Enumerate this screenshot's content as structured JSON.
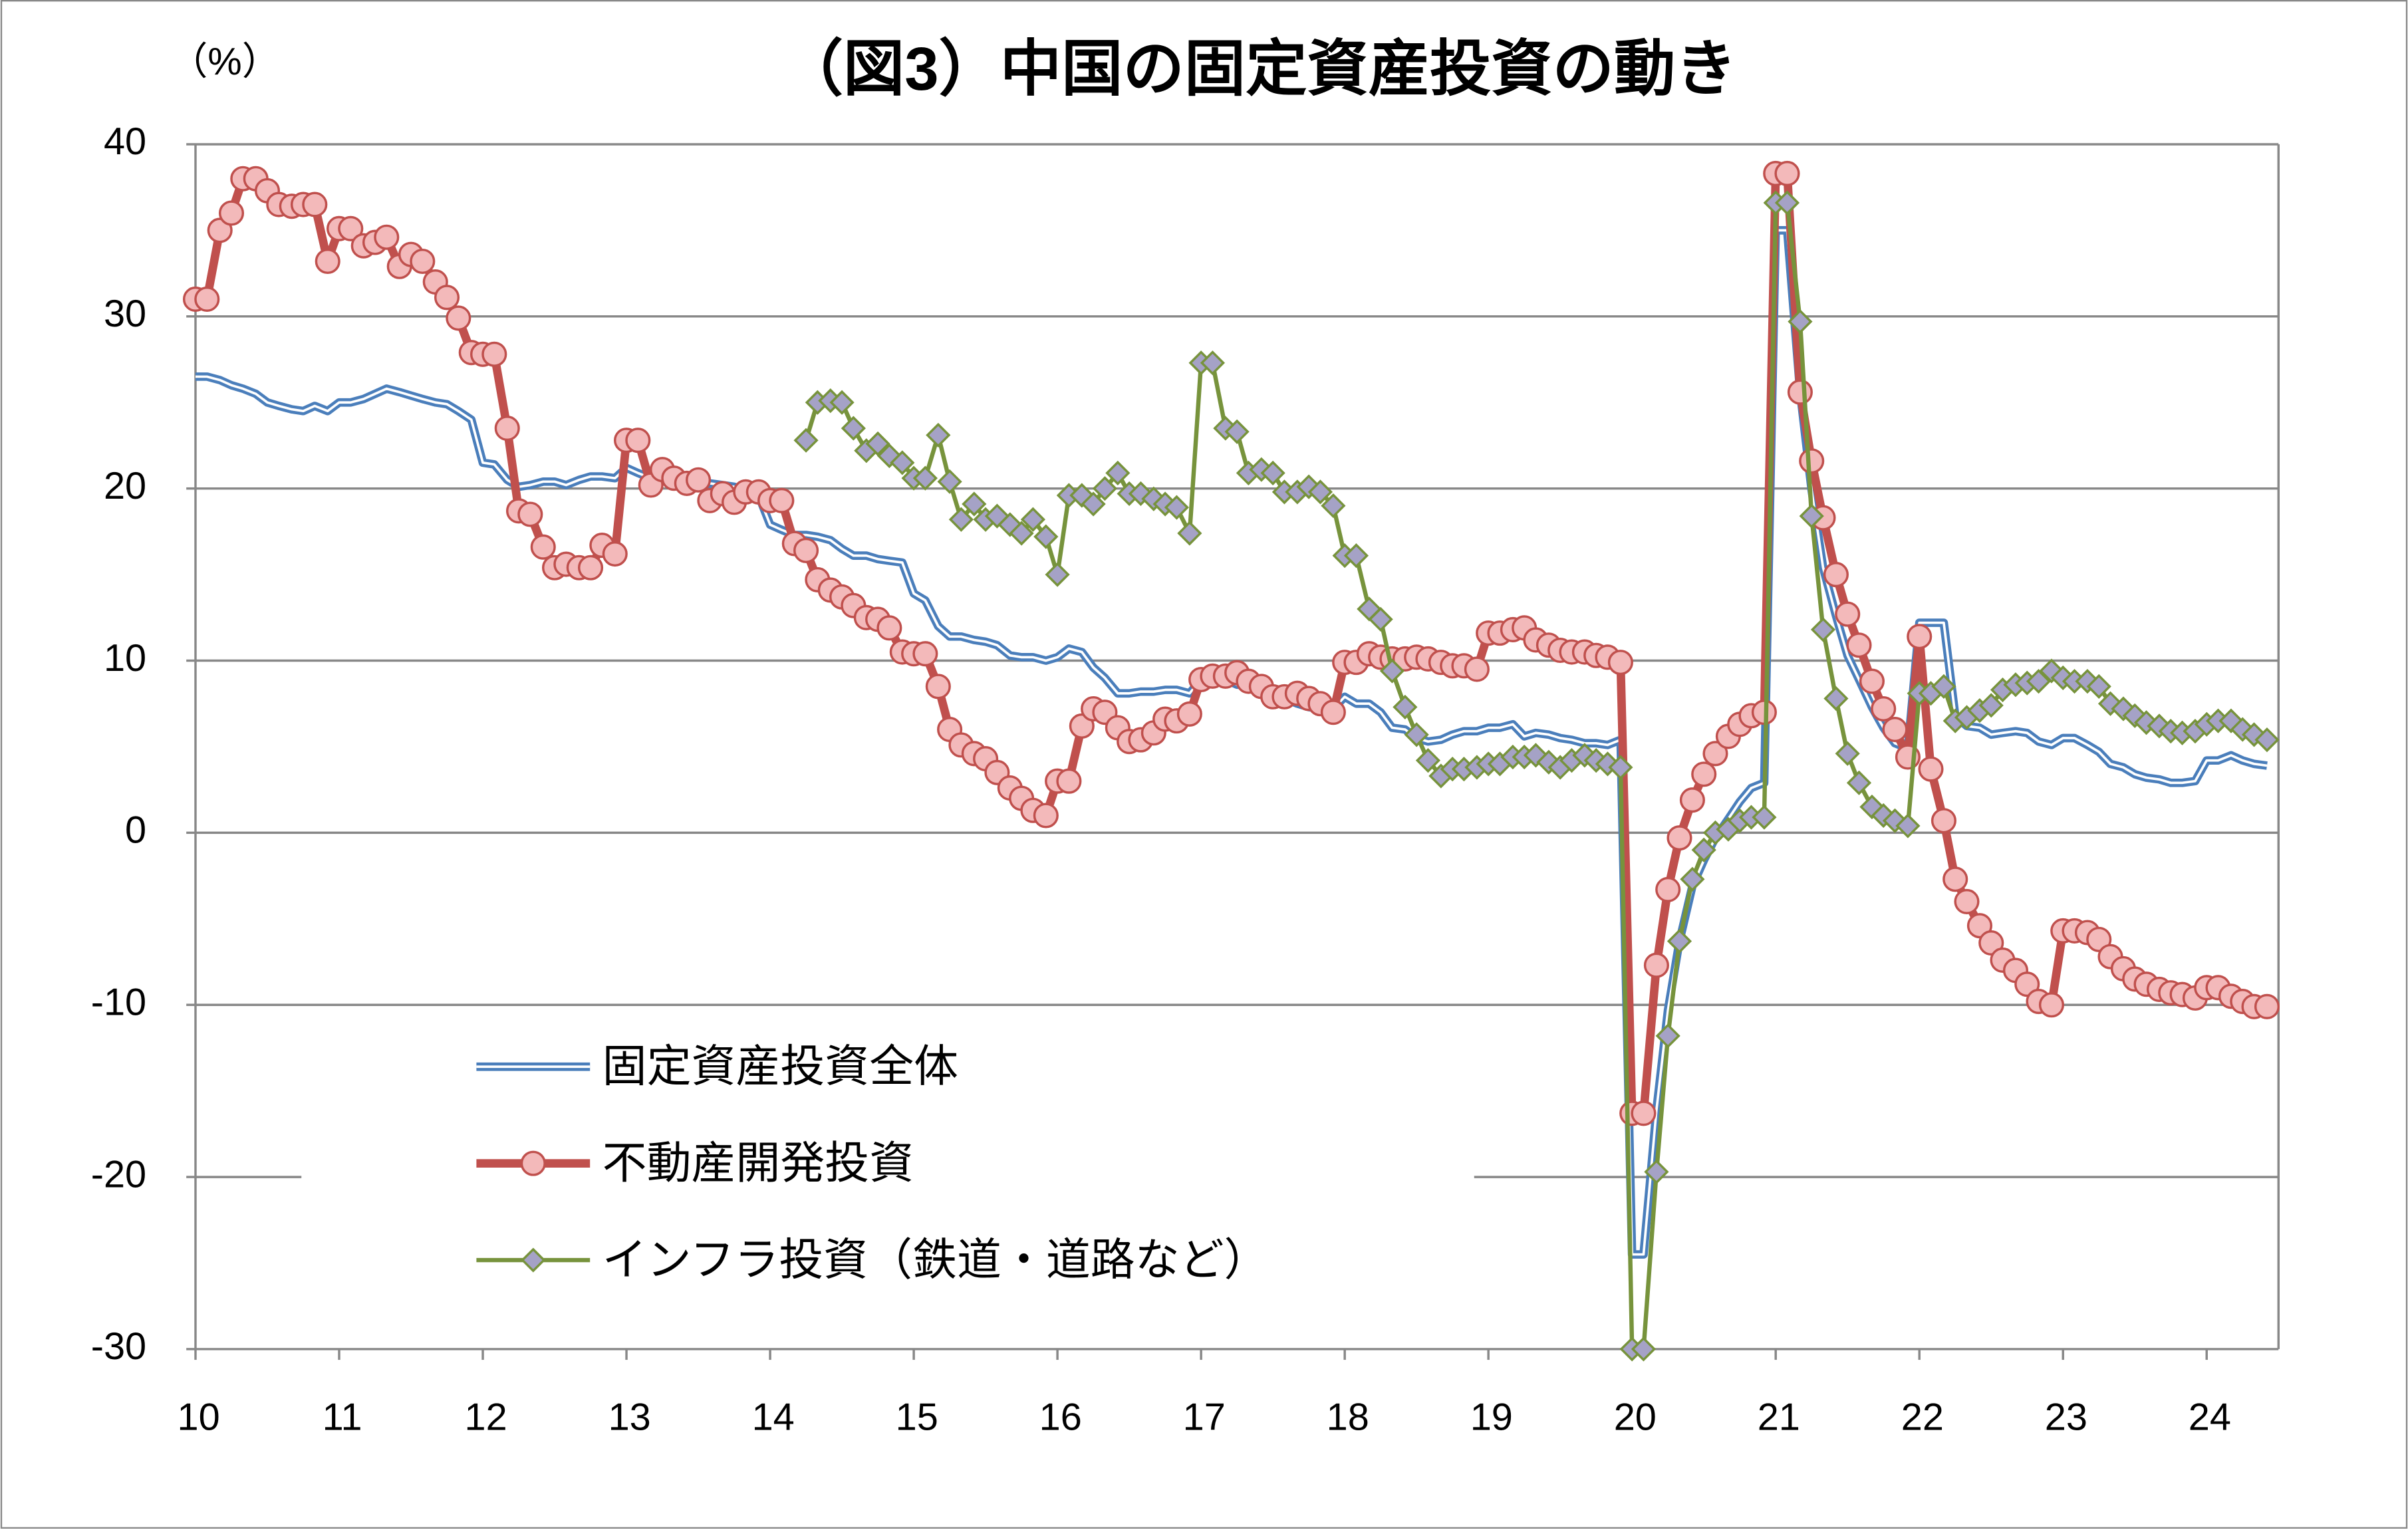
{
  "chart_data": {
    "type": "line",
    "title": "（図3）中国の固定資産投資の動き",
    "y_label": "（%）",
    "x": [
      10,
      10.08,
      10.17,
      10.25,
      10.33,
      10.42,
      10.5,
      10.58,
      10.67,
      10.75,
      10.83,
      10.92,
      11,
      11.08,
      11.17,
      11.25,
      11.33,
      11.42,
      11.5,
      11.58,
      11.67,
      11.75,
      11.83,
      11.92,
      12,
      12.08,
      12.17,
      12.25,
      12.33,
      12.42,
      12.5,
      12.58,
      12.67,
      12.75,
      12.83,
      12.92,
      13,
      13.08,
      13.17,
      13.25,
      13.33,
      13.42,
      13.5,
      13.58,
      13.67,
      13.75,
      13.83,
      13.92,
      14,
      14.08,
      14.17,
      14.25,
      14.33,
      14.42,
      14.5,
      14.58,
      14.67,
      14.75,
      14.83,
      14.92,
      15,
      15.08,
      15.17,
      15.25,
      15.33,
      15.42,
      15.5,
      15.58,
      15.67,
      15.75,
      15.83,
      15.92,
      16,
      16.08,
      16.17,
      16.25,
      16.33,
      16.42,
      16.5,
      16.58,
      16.67,
      16.75,
      16.83,
      16.92,
      17,
      17.08,
      17.17,
      17.25,
      17.33,
      17.42,
      17.5,
      17.58,
      17.67,
      17.75,
      17.83,
      17.92,
      18,
      18.08,
      18.17,
      18.25,
      18.33,
      18.42,
      18.5,
      18.58,
      18.67,
      18.75,
      18.83,
      18.92,
      19,
      19.08,
      19.17,
      19.25,
      19.33,
      19.42,
      19.5,
      19.58,
      19.67,
      19.75,
      19.83,
      19.92,
      20,
      20.08,
      20.17,
      20.25,
      20.33,
      20.42,
      20.5,
      20.58,
      20.67,
      20.75,
      20.83,
      20.92,
      21,
      21.08,
      21.17,
      21.25,
      21.33,
      21.42,
      21.5,
      21.58,
      21.67,
      21.75,
      21.83,
      21.92,
      22,
      22.08,
      22.17,
      22.25,
      22.33,
      22.42,
      22.5,
      22.58,
      22.67,
      22.75,
      22.83,
      22.92,
      23,
      23.08,
      23.17,
      23.25,
      23.33,
      23.42,
      23.5,
      23.58,
      23.67,
      23.75,
      23.83,
      23.92,
      24,
      24.08,
      24.17,
      24.25,
      24.33,
      24.42
    ],
    "series": [
      {
        "name": "固定資産投資全体",
        "color": "#4a7ebb",
        "marker": "none",
        "values": [
          26.5,
          26.5,
          26.3,
          26,
          25.8,
          25.5,
          25,
          24.8,
          24.6,
          24.5,
          24.8,
          24.5,
          25,
          25,
          25.2,
          25.5,
          25.8,
          25.6,
          25.4,
          25.2,
          25,
          24.9,
          24.5,
          24,
          21.5,
          21.4,
          20.5,
          20.1,
          20.2,
          20.4,
          20.4,
          20.2,
          20.5,
          20.7,
          20.7,
          20.6,
          21.2,
          20.9,
          20.6,
          20.6,
          20.4,
          20.1,
          20.1,
          20.3,
          20.2,
          20.1,
          19.9,
          19.6,
          17.9,
          17.6,
          17.3,
          17.3,
          17.2,
          17,
          16.5,
          16.1,
          16.1,
          15.9,
          15.8,
          15.7,
          13.9,
          13.5,
          12,
          11.4,
          11.4,
          11.2,
          11.1,
          10.9,
          10.3,
          10.2,
          10.2,
          10,
          10.2,
          10.7,
          10.5,
          9.6,
          9,
          8.1,
          8.1,
          8.2,
          8.2,
          8.3,
          8.3,
          8.1,
          8.9,
          9.2,
          8.9,
          8.6,
          8.6,
          8.3,
          8.3,
          7.8,
          7.5,
          7.3,
          7.2,
          7.2,
          7.9,
          7.5,
          7.5,
          7,
          6.1,
          6,
          5.5,
          5.3,
          5.4,
          5.7,
          5.9,
          5.9,
          6.1,
          6.1,
          6.3,
          5.6,
          5.8,
          5.7,
          5.5,
          5.4,
          5.2,
          5.2,
          5.1,
          5.4,
          -24.5,
          -24.5,
          -16.1,
          -10.3,
          -6.3,
          -3.1,
          -1.6,
          -0.3,
          0.8,
          1.8,
          2.6,
          2.9,
          35,
          35,
          25.6,
          19.9,
          15.4,
          12.6,
          10.3,
          8.9,
          7.3,
          6.1,
          5.2,
          4.9,
          12.2,
          12.2,
          12.2,
          6.8,
          6.2,
          6.1,
          5.7,
          5.8,
          5.9,
          5.8,
          5.3,
          5.1,
          5.5,
          5.5,
          5.1,
          4.7,
          4,
          3.8,
          3.4,
          3.2,
          3.1,
          2.9,
          2.9,
          3,
          4.2,
          4.2,
          4.5,
          4.2,
          4,
          3.9
        ]
      },
      {
        "name": "不動産開発投資",
        "color": "#c0504d",
        "marker": "circle",
        "values": [
          31,
          31,
          35,
          36,
          38,
          38,
          37.3,
          36.5,
          36.4,
          36.5,
          36.5,
          33.2,
          35.1,
          35.1,
          34.1,
          34.3,
          34.6,
          32.9,
          33.6,
          33.2,
          32,
          31.1,
          29.9,
          27.9,
          27.8,
          27.8,
          23.5,
          18.7,
          18.5,
          16.6,
          15.4,
          15.6,
          15.4,
          15.4,
          16.7,
          16.2,
          22.8,
          22.8,
          20.2,
          21.1,
          20.6,
          20.3,
          20.5,
          19.3,
          19.7,
          19.2,
          19.8,
          19.8,
          19.3,
          19.3,
          16.8,
          16.4,
          14.7,
          14.1,
          13.7,
          13.2,
          12.5,
          12.4,
          11.9,
          10.5,
          10.4,
          10.4,
          8.5,
          6,
          5.1,
          4.6,
          4.3,
          3.5,
          2.6,
          2,
          1.3,
          1,
          3,
          3,
          6.2,
          7.2,
          7,
          6.1,
          5.3,
          5.4,
          5.8,
          6.6,
          6.5,
          6.9,
          8.9,
          9.1,
          9.1,
          9.3,
          8.8,
          8.5,
          7.9,
          7.9,
          8.1,
          7.8,
          7.5,
          7,
          9.9,
          9.9,
          10.4,
          10.2,
          10.1,
          10.1,
          10.2,
          10.1,
          9.9,
          9.7,
          9.7,
          9.5,
          11.6,
          11.6,
          11.8,
          11.9,
          11.2,
          10.9,
          10.6,
          10.5,
          10.5,
          10.3,
          10.2,
          9.9,
          -16.3,
          -16.3,
          -7.7,
          -3.3,
          -0.3,
          1.9,
          3.4,
          4.6,
          5.6,
          6.3,
          6.8,
          7,
          38.3,
          38.3,
          25.6,
          21.6,
          18.3,
          15,
          12.7,
          10.9,
          8.8,
          7.2,
          6,
          4.4,
          11.4,
          3.7,
          0.7,
          -2.7,
          -4,
          -5.4,
          -6.4,
          -7.4,
          -8,
          -8.8,
          -9.8,
          -10,
          -5.7,
          -5.7,
          -5.8,
          -6.2,
          -7.2,
          -7.9,
          -8.5,
          -8.8,
          -9.1,
          -9.3,
          -9.4,
          -9.6,
          -9,
          -9,
          -9.5,
          -9.8,
          -10.1,
          -10.1
        ]
      },
      {
        "name": "インフラ投資（鉄道・道路など）",
        "color": "#77933c",
        "marker": "diamond",
        "values": [
          null,
          null,
          null,
          null,
          null,
          null,
          null,
          null,
          null,
          null,
          null,
          null,
          null,
          null,
          null,
          null,
          null,
          null,
          null,
          null,
          null,
          null,
          null,
          null,
          null,
          null,
          null,
          null,
          null,
          null,
          null,
          null,
          null,
          null,
          null,
          null,
          null,
          null,
          null,
          null,
          null,
          null,
          null,
          null,
          null,
          null,
          null,
          null,
          null,
          null,
          null,
          22.8,
          25,
          25.1,
          25,
          23.5,
          22.2,
          22.6,
          21.9,
          21.5,
          20.6,
          20.6,
          23.1,
          20.4,
          18.2,
          19.1,
          18.2,
          18.4,
          17.9,
          17.4,
          18.2,
          17.2,
          15,
          19.6,
          19.6,
          19.1,
          20,
          20.9,
          19.7,
          19.7,
          19.4,
          19.1,
          18.9,
          17.4,
          27.3,
          27.3,
          23.5,
          23.3,
          20.9,
          21.1,
          20.9,
          19.8,
          19.8,
          20.1,
          19.8,
          19,
          16.1,
          16.1,
          13,
          12.4,
          9.4,
          7.3,
          5.7,
          4.2,
          3.3,
          3.7,
          3.7,
          3.8,
          4,
          4,
          4.4,
          4.4,
          4.5,
          4.1,
          3.8,
          4.2,
          4.5,
          4.2,
          4,
          3.8,
          -30,
          -30,
          -19.7,
          -11.8,
          -6.3,
          -2.7,
          -1,
          0,
          0.2,
          0.7,
          0.9,
          0.9,
          36.6,
          36.6,
          29.7,
          18.4,
          11.8,
          7.8,
          4.6,
          2.9,
          1.5,
          1,
          0.7,
          0.4,
          8.1,
          8.1,
          8.5,
          6.5,
          6.7,
          7.1,
          7.4,
          8.3,
          8.6,
          8.7,
          8.8,
          9.4,
          9,
          8.8,
          8.8,
          8.5,
          7.5,
          7.2,
          6.8,
          6.4,
          6.2,
          5.9,
          5.8,
          5.9,
          6.3,
          6.5,
          6.5,
          6,
          5.7,
          5.4
        ]
      }
    ],
    "xlim": [
      10,
      24.5
    ],
    "xticks": [
      10,
      11,
      12,
      13,
      14,
      15,
      16,
      17,
      18,
      19,
      20,
      21,
      22,
      23,
      24
    ],
    "ylim": [
      -30,
      40
    ],
    "yticks": [
      40,
      30,
      20,
      10,
      0,
      -10,
      -20,
      -30
    ],
    "grid": true,
    "legend": "lower left"
  }
}
